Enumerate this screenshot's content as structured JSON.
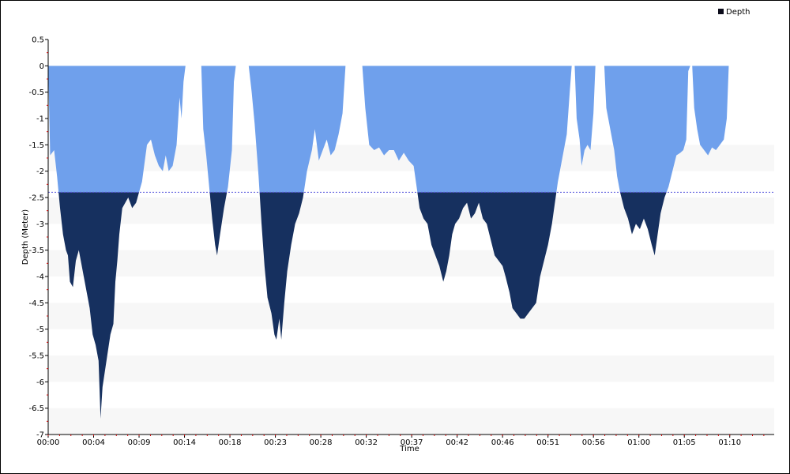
{
  "chart_data": {
    "type": "area",
    "title": "",
    "xlabel": "Time",
    "ylabel": "Depth (Meter)",
    "legend": {
      "position": "top-right",
      "entries": [
        {
          "label": "Depth",
          "color": "#0b0b1a"
        }
      ]
    },
    "grid": "alternating horizontal bands",
    "xlim": [
      0,
      73.5
    ],
    "ylim": [
      -7,
      0.5
    ],
    "x_ticks": [
      {
        "t": 0,
        "label": "00:00"
      },
      {
        "t": 4.6,
        "label": "00:04"
      },
      {
        "t": 9.2,
        "label": "00:09"
      },
      {
        "t": 13.8,
        "label": "00:14"
      },
      {
        "t": 18.4,
        "label": "00:18"
      },
      {
        "t": 23.0,
        "label": "00:23"
      },
      {
        "t": 27.6,
        "label": "00:28"
      },
      {
        "t": 32.2,
        "label": "00:32"
      },
      {
        "t": 36.8,
        "label": "00:37"
      },
      {
        "t": 41.4,
        "label": "00:42"
      },
      {
        "t": 46.0,
        "label": "00:46"
      },
      {
        "t": 50.6,
        "label": "00:51"
      },
      {
        "t": 55.2,
        "label": "00:56"
      },
      {
        "t": 59.8,
        "label": "01:00"
      },
      {
        "t": 64.4,
        "label": "01:05"
      },
      {
        "t": 69.0,
        "label": "01:10"
      }
    ],
    "y_ticks": [
      0.5,
      0,
      -0.5,
      -1,
      -1.5,
      -2,
      -2.5,
      -3,
      -3.5,
      -4,
      -4.5,
      -5,
      -5.5,
      -6,
      -6.5,
      -7
    ],
    "y_tick_labels": [
      "0.5",
      "0",
      "-0.5",
      "-1",
      "-1.5",
      "-2",
      "-2.5",
      "-3",
      "-3.5",
      "-4",
      "-4.5",
      "-5",
      "-5.5",
      "-6",
      "-6.5",
      "-7"
    ],
    "threshold": -2.4,
    "colors": {
      "shallow": "#6fa0ec",
      "deep": "#16305f",
      "threshold_line": "#5555dd",
      "band": "#f7f7f7",
      "axis": "#000000",
      "tick_mark": "#cc0000"
    },
    "series": [
      {
        "name": "Depth",
        "points": [
          [
            0,
            0
          ],
          [
            0.2,
            -1.7
          ],
          [
            0.6,
            -1.6
          ],
          [
            0.9,
            -2.1
          ],
          [
            1.2,
            -2.7
          ],
          [
            1.5,
            -3.2
          ],
          [
            1.8,
            -3.5
          ],
          [
            2.0,
            -3.6
          ],
          [
            2.2,
            -4.1
          ],
          [
            2.5,
            -4.2
          ],
          [
            2.8,
            -3.7
          ],
          [
            3.1,
            -3.5
          ],
          [
            3.4,
            -3.8
          ],
          [
            3.8,
            -4.2
          ],
          [
            4.2,
            -4.6
          ],
          [
            4.5,
            -5.1
          ],
          [
            4.8,
            -5.3
          ],
          [
            5.1,
            -5.6
          ],
          [
            5.3,
            -6.7
          ],
          [
            5.5,
            -6.1
          ],
          [
            5.9,
            -5.6
          ],
          [
            6.3,
            -5.1
          ],
          [
            6.6,
            -4.9
          ],
          [
            6.8,
            -4.1
          ],
          [
            7.0,
            -3.7
          ],
          [
            7.2,
            -3.2
          ],
          [
            7.5,
            -2.7
          ],
          [
            8.1,
            -2.5
          ],
          [
            8.5,
            -2.7
          ],
          [
            8.9,
            -2.6
          ],
          [
            9.5,
            -2.2
          ],
          [
            10.0,
            -1.5
          ],
          [
            10.4,
            -1.4
          ],
          [
            10.8,
            -1.7
          ],
          [
            11.2,
            -1.9
          ],
          [
            11.6,
            -2.0
          ],
          [
            11.9,
            -1.7
          ],
          [
            12.2,
            -2.0
          ],
          [
            12.6,
            -1.9
          ],
          [
            13.0,
            -1.5
          ],
          [
            13.3,
            -0.6
          ],
          [
            13.5,
            -1.0
          ],
          [
            13.7,
            -0.3
          ],
          [
            13.9,
            0
          ],
          [
            15.5,
            0
          ],
          [
            15.7,
            -1.2
          ],
          [
            16.0,
            -1.7
          ],
          [
            16.3,
            -2.3
          ],
          [
            16.6,
            -2.9
          ],
          [
            16.9,
            -3.4
          ],
          [
            17.1,
            -3.6
          ],
          [
            17.4,
            -3.2
          ],
          [
            17.8,
            -2.7
          ],
          [
            18.2,
            -2.3
          ],
          [
            18.6,
            -1.6
          ],
          [
            18.8,
            -0.3
          ],
          [
            19.0,
            0
          ],
          [
            20.3,
            0
          ],
          [
            20.6,
            -0.5
          ],
          [
            20.9,
            -1.1
          ],
          [
            21.3,
            -2.1
          ],
          [
            21.6,
            -3.0
          ],
          [
            21.9,
            -3.8
          ],
          [
            22.2,
            -4.4
          ],
          [
            22.6,
            -4.7
          ],
          [
            22.9,
            -5.1
          ],
          [
            23.1,
            -5.2
          ],
          [
            23.4,
            -4.8
          ],
          [
            23.6,
            -5.2
          ],
          [
            23.9,
            -4.5
          ],
          [
            24.2,
            -3.9
          ],
          [
            24.6,
            -3.4
          ],
          [
            25.0,
            -3.0
          ],
          [
            25.4,
            -2.8
          ],
          [
            25.8,
            -2.5
          ],
          [
            26.2,
            -2.0
          ],
          [
            26.7,
            -1.6
          ],
          [
            27.0,
            -1.2
          ],
          [
            27.4,
            -1.8
          ],
          [
            27.8,
            -1.6
          ],
          [
            28.2,
            -1.4
          ],
          [
            28.6,
            -1.7
          ],
          [
            29.0,
            -1.6
          ],
          [
            29.4,
            -1.3
          ],
          [
            29.8,
            -0.9
          ],
          [
            30.1,
            0
          ],
          [
            31.8,
            0
          ],
          [
            32.1,
            -0.8
          ],
          [
            32.5,
            -1.5
          ],
          [
            33.0,
            -1.6
          ],
          [
            33.5,
            -1.55
          ],
          [
            34.0,
            -1.7
          ],
          [
            34.5,
            -1.6
          ],
          [
            35.0,
            -1.6
          ],
          [
            35.5,
            -1.8
          ],
          [
            36.0,
            -1.65
          ],
          [
            36.5,
            -1.8
          ],
          [
            37.0,
            -1.9
          ],
          [
            37.3,
            -2.3
          ],
          [
            37.6,
            -2.7
          ],
          [
            38.0,
            -2.9
          ],
          [
            38.4,
            -3.0
          ],
          [
            38.8,
            -3.4
          ],
          [
            39.2,
            -3.6
          ],
          [
            39.6,
            -3.8
          ],
          [
            40.0,
            -4.1
          ],
          [
            40.3,
            -3.9
          ],
          [
            40.6,
            -3.6
          ],
          [
            40.9,
            -3.2
          ],
          [
            41.2,
            -3.0
          ],
          [
            41.6,
            -2.9
          ],
          [
            42.0,
            -2.7
          ],
          [
            42.4,
            -2.6
          ],
          [
            42.8,
            -2.9
          ],
          [
            43.2,
            -2.8
          ],
          [
            43.6,
            -2.6
          ],
          [
            44.0,
            -2.9
          ],
          [
            44.4,
            -3.0
          ],
          [
            44.8,
            -3.3
          ],
          [
            45.2,
            -3.6
          ],
          [
            45.6,
            -3.7
          ],
          [
            46.0,
            -3.8
          ],
          [
            46.3,
            -4.0
          ],
          [
            46.7,
            -4.3
          ],
          [
            47.0,
            -4.6
          ],
          [
            47.4,
            -4.7
          ],
          [
            47.8,
            -4.8
          ],
          [
            48.2,
            -4.8
          ],
          [
            48.6,
            -4.7
          ],
          [
            49.0,
            -4.6
          ],
          [
            49.4,
            -4.5
          ],
          [
            49.8,
            -4.0
          ],
          [
            50.2,
            -3.7
          ],
          [
            50.6,
            -3.4
          ],
          [
            51.0,
            -3.0
          ],
          [
            51.3,
            -2.6
          ],
          [
            51.6,
            -2.2
          ],
          [
            51.9,
            -1.9
          ],
          [
            52.2,
            -1.6
          ],
          [
            52.5,
            -1.3
          ],
          [
            52.8,
            -0.5
          ],
          [
            53.0,
            0
          ],
          [
            53.3,
            0
          ],
          [
            53.5,
            -1.0
          ],
          [
            53.8,
            -1.4
          ],
          [
            54.0,
            -1.9
          ],
          [
            54.3,
            -1.6
          ],
          [
            54.6,
            -1.5
          ],
          [
            54.9,
            -1.6
          ],
          [
            55.2,
            -0.9
          ],
          [
            55.4,
            0
          ],
          [
            56.3,
            0
          ],
          [
            56.5,
            -0.8
          ],
          [
            56.8,
            -1.1
          ],
          [
            57.0,
            -1.3
          ],
          [
            57.3,
            -1.6
          ],
          [
            57.6,
            -2.1
          ],
          [
            57.9,
            -2.4
          ],
          [
            58.3,
            -2.7
          ],
          [
            58.7,
            -2.9
          ],
          [
            59.1,
            -3.2
          ],
          [
            59.5,
            -3.0
          ],
          [
            59.9,
            -3.1
          ],
          [
            60.3,
            -2.9
          ],
          [
            60.7,
            -3.1
          ],
          [
            61.1,
            -3.4
          ],
          [
            61.4,
            -3.6
          ],
          [
            61.7,
            -3.2
          ],
          [
            62.0,
            -2.8
          ],
          [
            62.4,
            -2.5
          ],
          [
            62.8,
            -2.3
          ],
          [
            63.2,
            -2.0
          ],
          [
            63.6,
            -1.7
          ],
          [
            64.0,
            -1.65
          ],
          [
            64.3,
            -1.6
          ],
          [
            64.6,
            -1.4
          ],
          [
            64.8,
            -0.1
          ],
          [
            65.0,
            0
          ],
          [
            65.2,
            0
          ],
          [
            65.4,
            -0.8
          ],
          [
            65.7,
            -1.2
          ],
          [
            66.0,
            -1.5
          ],
          [
            66.4,
            -1.6
          ],
          [
            66.8,
            -1.7
          ],
          [
            67.2,
            -1.55
          ],
          [
            67.6,
            -1.6
          ],
          [
            68.0,
            -1.5
          ],
          [
            68.4,
            -1.4
          ],
          [
            68.7,
            -1.0
          ],
          [
            68.9,
            0
          ]
        ]
      }
    ]
  }
}
